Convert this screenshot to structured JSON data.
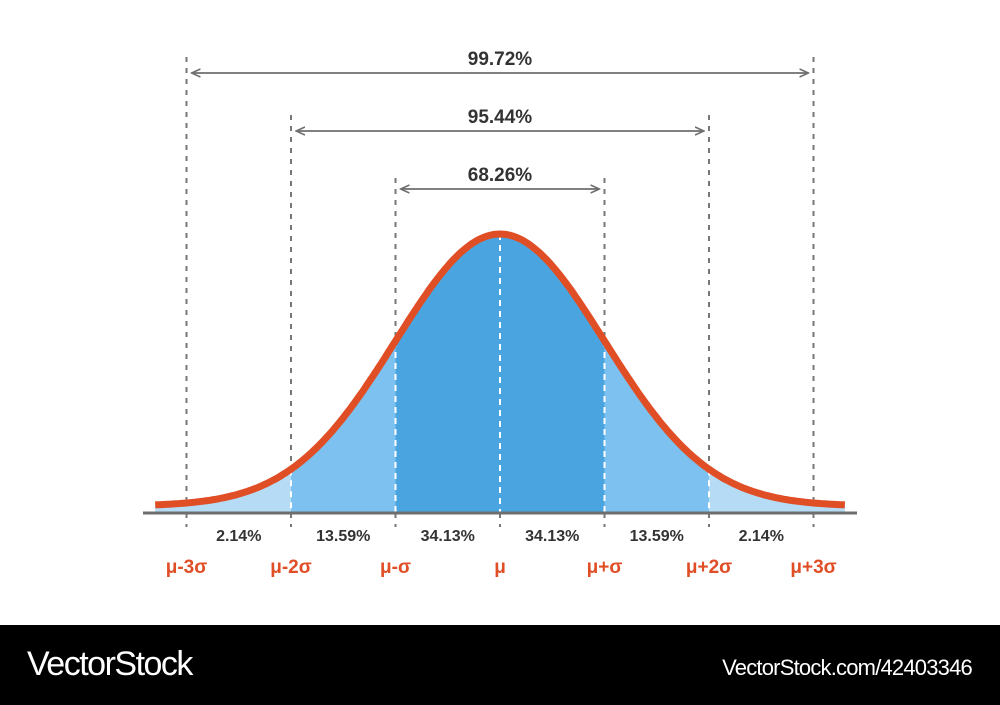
{
  "chart_data": {
    "type": "area",
    "distribution": "normal",
    "x_ticks": [
      "μ-3σ",
      "μ-2σ",
      "μ-σ",
      "μ",
      "μ+σ",
      "μ+2σ",
      "μ+3σ"
    ],
    "regions": [
      {
        "from": -3,
        "to": -2,
        "label": "2.14%",
        "color": "#b6dcf5"
      },
      {
        "from": -2,
        "to": -1,
        "label": "13.59%",
        "color": "#7dc1f0"
      },
      {
        "from": -1,
        "to": 0,
        "label": "34.13%",
        "color": "#4aa4e0"
      },
      {
        "from": 0,
        "to": 1,
        "label": "34.13%",
        "color": "#4aa4e0"
      },
      {
        "from": 1,
        "to": 2,
        "label": "13.59%",
        "color": "#7dc1f0"
      },
      {
        "from": 2,
        "to": 3,
        "label": "2.14%",
        "color": "#b6dcf5"
      }
    ],
    "intervals": [
      {
        "sigma": 1,
        "label": "68.26%"
      },
      {
        "sigma": 2,
        "label": "95.44%"
      },
      {
        "sigma": 3,
        "label": "99.72%"
      }
    ],
    "curve_color": "#e04e26",
    "tick_label_color": "#e04e26",
    "axis_color": "#6e6e6e"
  },
  "footer": {
    "logo": "VectorStock",
    "url": "VectorStock.com/42403346"
  }
}
